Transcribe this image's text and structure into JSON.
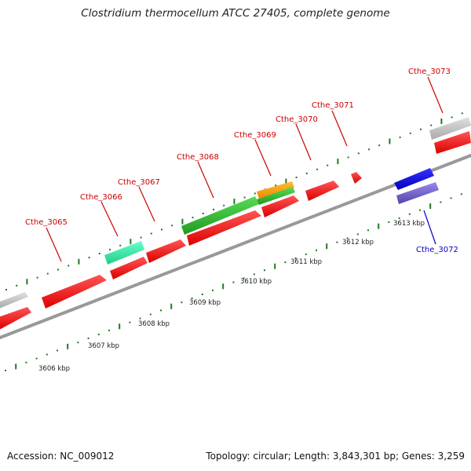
{
  "title": "Clostridium thermocellum ATCC 27405, complete genome",
  "footer": {
    "accession": "Accession: NC_009012",
    "summary": "Topology: circular; Length: 3,843,301 bp; Genes: 3,259"
  },
  "scale_labels": [
    "3606 kbp",
    "3607 kbp",
    "3608 kbp",
    "3609 kbp",
    "3610 kbp",
    "3611 kbp",
    "3612 kbp",
    "3613 kbp"
  ],
  "genes": [
    {
      "name": "Cthe_3065",
      "color": "#cc0000"
    },
    {
      "name": "Cthe_3066",
      "color": "#cc0000"
    },
    {
      "name": "Cthe_3067",
      "color": "#cc0000"
    },
    {
      "name": "Cthe_3068",
      "color": "#cc0000"
    },
    {
      "name": "Cthe_3069",
      "color": "#cc0000"
    },
    {
      "name": "Cthe_3070",
      "color": "#cc0000"
    },
    {
      "name": "Cthe_3071",
      "color": "#cc0000"
    },
    {
      "name": "Cthe_3073",
      "color": "#cc0000"
    },
    {
      "name": "Cthe_3072",
      "color": "#0000cc"
    }
  ],
  "colors": {
    "cds_red": "#ff0000",
    "grey": "#bbbbbb",
    "green": "#33bb33",
    "teal": "#33eeaa",
    "orange": "#ff9900",
    "blue": "#0000ee",
    "slate": "#7766cc",
    "tick_green": "#227722",
    "backbone": "#999999"
  }
}
